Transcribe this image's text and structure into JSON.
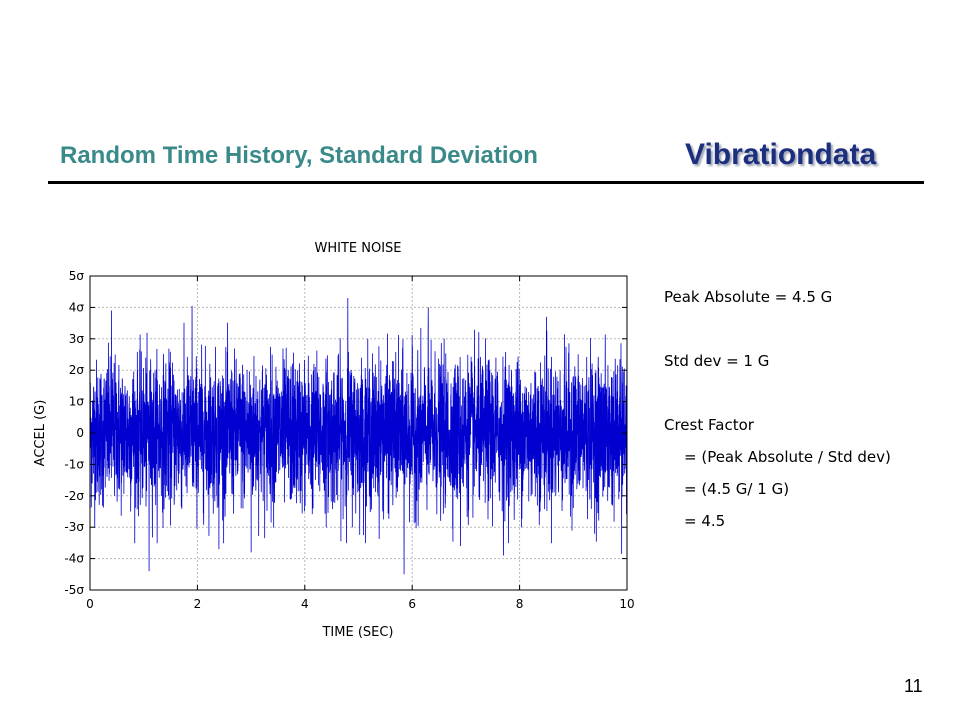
{
  "slide": {
    "title": "Random Time History, Standard Deviation",
    "brand": "Vibrationdata",
    "page_number": "11"
  },
  "notes": {
    "peak": "Peak Absolute = 4.5 G",
    "std": "Std dev = 1 G",
    "crest_label": "Crest Factor",
    "crest_formula": "= (Peak Absolute / Std dev)",
    "crest_values": "= (4.5 G/ 1 G)",
    "crest_result": "= 4.5"
  },
  "chart_data": {
    "type": "line",
    "title": "WHITE NOISE",
    "xlabel": "TIME (SEC)",
    "ylabel": "ACCEL (G)",
    "xlim": [
      0,
      10
    ],
    "ylim": [
      -5,
      5
    ],
    "x_ticks": [
      "0",
      "2",
      "4",
      "6",
      "8",
      "10"
    ],
    "y_ticks": [
      "5σ",
      "4σ",
      "3σ",
      "2σ",
      "1σ",
      "0",
      "-1σ",
      "-2σ",
      "-3σ",
      "-4σ",
      "-5σ"
    ],
    "grid": true,
    "series_color": "#0000d0",
    "signal": {
      "kind": "gaussian white noise",
      "mean": 0,
      "std": 1,
      "duration": 10,
      "peak_abs": 4.5,
      "peaks": [
        {
          "x": 1.1,
          "y": -4.4
        },
        {
          "x": 4.8,
          "y": 4.3
        },
        {
          "x": 5.85,
          "y": -4.5
        },
        {
          "x": 1.9,
          "y": 4.05
        },
        {
          "x": 3.0,
          "y": -3.8
        },
        {
          "x": 9.9,
          "y": -3.85
        },
        {
          "x": 6.3,
          "y": 4.0
        },
        {
          "x": 0.4,
          "y": 3.9
        },
        {
          "x": 2.4,
          "y": -3.7
        },
        {
          "x": 7.7,
          "y": -3.9
        },
        {
          "x": 8.5,
          "y": 3.7
        },
        {
          "x": 6.9,
          "y": -3.6
        }
      ]
    }
  }
}
